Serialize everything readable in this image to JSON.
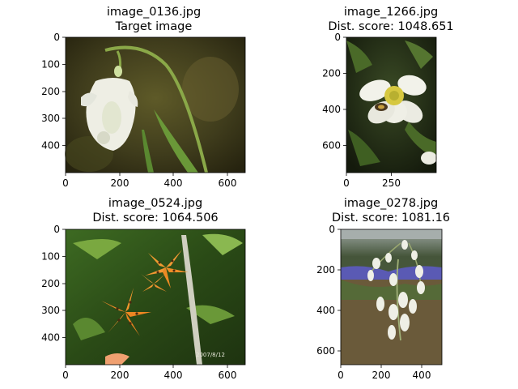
{
  "chart_data": [
    {
      "type": "image",
      "title_lines": [
        "image_0136.jpg",
        "Target image"
      ],
      "xlim": [
        0,
        667
      ],
      "ylim": [
        500,
        0
      ],
      "xticks": [
        0,
        200,
        400,
        600
      ],
      "yticks": [
        0,
        100,
        200,
        300,
        400
      ],
      "content": "white snowdrop-like flower with frost on dark green background",
      "palette": {
        "bg": "#3a3a1a",
        "bg2": "#5a5a25",
        "stem": "#7fa040",
        "flower": "#f2f2ea"
      }
    },
    {
      "type": "image",
      "title_lines": [
        "image_1266.jpg",
        "Dist. score: 1048.651"
      ],
      "xlim": [
        0,
        500
      ],
      "ylim": [
        750,
        0
      ],
      "xticks": [
        0,
        250
      ],
      "yticks": [
        0,
        200,
        400,
        600
      ],
      "content": "white anemone flower with yellow center and a bee",
      "palette": {
        "bg": "#23301a",
        "leaf": "#4a6a2a",
        "flower": "#f4f4ee",
        "center": "#d8c838"
      }
    },
    {
      "type": "image",
      "title_lines": [
        "image_0524.jpg",
        "Dist. score: 1064.506"
      ],
      "xlim": [
        0,
        667
      ],
      "ylim": [
        500,
        0
      ],
      "xticks": [
        0,
        200,
        400,
        600
      ],
      "yticks": [
        0,
        100,
        200,
        300,
        400
      ],
      "content": "orange spotted tiger lilies among green foliage",
      "watermark": "2007/8/12",
      "palette": {
        "bg": "#2a4a18",
        "leaf": "#6a9a3a",
        "flower": "#f0902a",
        "spot": "#4a2a10"
      }
    },
    {
      "type": "image",
      "title_lines": [
        "image_0278.jpg",
        "Dist. score: 1081.16"
      ],
      "xlim": [
        0,
        500
      ],
      "ylim": [
        667,
        0
      ],
      "xticks": [
        0,
        200,
        400
      ],
      "yticks": [
        0,
        200,
        400,
        600
      ],
      "content": "white bell-shaped flowers on drooping stems with blue flowers behind",
      "palette": {
        "sky": "#9aa0a0",
        "trees": "#3a4a2a",
        "blue": "#5a5ab0",
        "ground": "#6a5a3a",
        "flower": "#eeeee6"
      }
    }
  ]
}
